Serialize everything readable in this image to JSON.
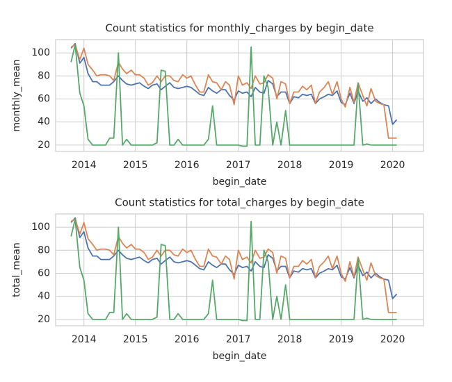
{
  "chart_data": [
    {
      "type": "line",
      "title": "Count statistics for monthly_charges by begin_date",
      "xlabel": "begin_date",
      "ylabel": "monthly_mean",
      "x": [
        2013.75,
        2013.83,
        2013.92,
        2014.0,
        2014.08,
        2014.17,
        2014.25,
        2014.33,
        2014.42,
        2014.5,
        2014.58,
        2014.67,
        2014.75,
        2014.83,
        2014.92,
        2015.0,
        2015.08,
        2015.17,
        2015.25,
        2015.33,
        2015.42,
        2015.5,
        2015.58,
        2015.67,
        2015.75,
        2015.83,
        2015.92,
        2016.0,
        2016.08,
        2016.17,
        2016.25,
        2016.33,
        2016.42,
        2016.5,
        2016.58,
        2016.67,
        2016.75,
        2016.83,
        2016.92,
        2017.0,
        2017.08,
        2017.17,
        2017.25,
        2017.33,
        2017.42,
        2017.5,
        2017.58,
        2017.67,
        2017.75,
        2017.83,
        2017.92,
        2018.0,
        2018.08,
        2018.17,
        2018.25,
        2018.33,
        2018.42,
        2018.5,
        2018.58,
        2018.67,
        2018.75,
        2018.83,
        2018.92,
        2019.0,
        2019.08,
        2019.17,
        2019.25,
        2019.33,
        2019.42,
        2019.5,
        2019.58,
        2019.67,
        2019.75,
        2019.83,
        2019.92,
        2020.0,
        2020.08
      ],
      "series": [
        {
          "color": "#4c72b0",
          "values": [
            104,
            108,
            91,
            96,
            82,
            75,
            75,
            72,
            72,
            72,
            75,
            80,
            76,
            73,
            72,
            73,
            74,
            71,
            69,
            72,
            73,
            68,
            71,
            74,
            70,
            69,
            70,
            71,
            70,
            67,
            64,
            63,
            70,
            67,
            65,
            68,
            68,
            63,
            59,
            67,
            65,
            66,
            62,
            70,
            66,
            65,
            76,
            73,
            62,
            66,
            66,
            56,
            62,
            61,
            64,
            63,
            64,
            56,
            60,
            62,
            64,
            63,
            67,
            57,
            55,
            65,
            56,
            67,
            58,
            61,
            56,
            60,
            57,
            55,
            54,
            38,
            42
          ]
        },
        {
          "color": "#dd8452",
          "values": [
            105,
            107,
            94,
            104,
            90,
            85,
            80,
            81,
            81,
            80,
            76,
            92,
            86,
            82,
            85,
            81,
            81,
            78,
            72,
            74,
            80,
            75,
            80,
            80,
            76,
            75,
            81,
            78,
            80,
            72,
            66,
            66,
            81,
            75,
            74,
            68,
            75,
            72,
            55,
            80,
            72,
            74,
            69,
            80,
            73,
            74,
            81,
            78,
            60,
            75,
            73,
            56,
            66,
            66,
            71,
            68,
            72,
            56,
            66,
            70,
            75,
            64,
            75,
            60,
            53,
            70,
            57,
            74,
            63,
            54,
            69,
            58,
            56,
            55,
            26,
            26,
            26
          ]
        },
        {
          "color": "#55a868",
          "values": [
            92,
            107,
            65,
            54,
            25,
            20,
            20,
            20,
            20,
            26,
            26,
            100,
            20,
            25,
            20,
            20,
            20,
            20,
            20,
            20,
            22,
            85,
            84,
            20,
            20,
            25,
            20,
            20,
            20,
            20,
            20,
            20,
            25,
            54,
            20,
            20,
            20,
            20,
            20,
            20,
            19,
            19,
            105,
            20,
            20,
            80,
            70,
            20,
            40,
            20,
            50,
            20,
            20,
            20,
            20,
            20,
            20,
            20,
            20,
            20,
            20,
            20,
            20,
            20,
            20,
            20,
            20,
            73,
            20,
            21,
            20,
            20,
            20,
            20,
            20,
            20,
            20
          ]
        }
      ],
      "xlim": [
        2013.45,
        2020.6
      ],
      "xticks": [
        2014,
        2015,
        2016,
        2017,
        2018,
        2019,
        2020
      ],
      "ylim": [
        14.5,
        111.5
      ],
      "yticks": [
        20,
        40,
        60,
        80,
        100
      ],
      "grid": true
    },
    {
      "type": "line",
      "title": "Count statistics for total_charges by begin_date",
      "xlabel": "begin_date",
      "ylabel": "total_mean",
      "x": [
        2013.75,
        2013.83,
        2013.92,
        2014.0,
        2014.08,
        2014.17,
        2014.25,
        2014.33,
        2014.42,
        2014.5,
        2014.58,
        2014.67,
        2014.75,
        2014.83,
        2014.92,
        2015.0,
        2015.08,
        2015.17,
        2015.25,
        2015.33,
        2015.42,
        2015.5,
        2015.58,
        2015.67,
        2015.75,
        2015.83,
        2015.92,
        2016.0,
        2016.08,
        2016.17,
        2016.25,
        2016.33,
        2016.42,
        2016.5,
        2016.58,
        2016.67,
        2016.75,
        2016.83,
        2016.92,
        2017.0,
        2017.08,
        2017.17,
        2017.25,
        2017.33,
        2017.42,
        2017.5,
        2017.58,
        2017.67,
        2017.75,
        2017.83,
        2017.92,
        2018.0,
        2018.08,
        2018.17,
        2018.25,
        2018.33,
        2018.42,
        2018.5,
        2018.58,
        2018.67,
        2018.75,
        2018.83,
        2018.92,
        2019.0,
        2019.08,
        2019.17,
        2019.25,
        2019.33,
        2019.42,
        2019.5,
        2019.58,
        2019.67,
        2019.75,
        2019.83,
        2019.92,
        2020.0,
        2020.08
      ],
      "series": [
        {
          "color": "#4c72b0",
          "values": [
            104,
            108,
            91,
            96,
            82,
            75,
            75,
            72,
            72,
            72,
            75,
            80,
            76,
            73,
            72,
            73,
            74,
            71,
            69,
            72,
            73,
            68,
            71,
            74,
            70,
            69,
            70,
            71,
            70,
            67,
            64,
            63,
            70,
            67,
            65,
            68,
            68,
            63,
            59,
            67,
            65,
            66,
            62,
            70,
            66,
            65,
            76,
            73,
            62,
            66,
            66,
            56,
            62,
            61,
            64,
            63,
            64,
            56,
            60,
            62,
            64,
            63,
            67,
            57,
            55,
            65,
            56,
            67,
            58,
            61,
            56,
            60,
            57,
            55,
            54,
            38,
            42
          ]
        },
        {
          "color": "#dd8452",
          "values": [
            105,
            107,
            94,
            104,
            90,
            85,
            80,
            81,
            81,
            80,
            76,
            92,
            86,
            82,
            85,
            81,
            81,
            78,
            72,
            74,
            80,
            75,
            80,
            80,
            76,
            75,
            81,
            78,
            80,
            72,
            66,
            66,
            81,
            75,
            74,
            68,
            75,
            72,
            55,
            80,
            72,
            74,
            69,
            80,
            73,
            74,
            81,
            78,
            60,
            75,
            73,
            56,
            66,
            66,
            71,
            68,
            72,
            56,
            66,
            70,
            75,
            64,
            75,
            60,
            53,
            70,
            57,
            74,
            63,
            54,
            69,
            58,
            56,
            55,
            26,
            26,
            26
          ]
        },
        {
          "color": "#55a868",
          "values": [
            92,
            107,
            65,
            54,
            25,
            20,
            20,
            20,
            20,
            26,
            26,
            100,
            20,
            25,
            20,
            20,
            20,
            20,
            20,
            20,
            22,
            85,
            84,
            20,
            20,
            25,
            20,
            20,
            20,
            20,
            20,
            20,
            25,
            54,
            20,
            20,
            20,
            20,
            20,
            20,
            19,
            19,
            105,
            20,
            20,
            80,
            70,
            20,
            40,
            20,
            50,
            20,
            20,
            20,
            20,
            20,
            20,
            20,
            20,
            20,
            20,
            20,
            20,
            20,
            20,
            20,
            20,
            73,
            20,
            21,
            20,
            20,
            20,
            20,
            20,
            20,
            20
          ]
        }
      ],
      "xlim": [
        2013.45,
        2020.6
      ],
      "xticks": [
        2014,
        2015,
        2016,
        2017,
        2018,
        2019,
        2020
      ],
      "ylim": [
        14.5,
        111.5
      ],
      "yticks": [
        20,
        40,
        60,
        80,
        100
      ],
      "grid": true
    }
  ]
}
